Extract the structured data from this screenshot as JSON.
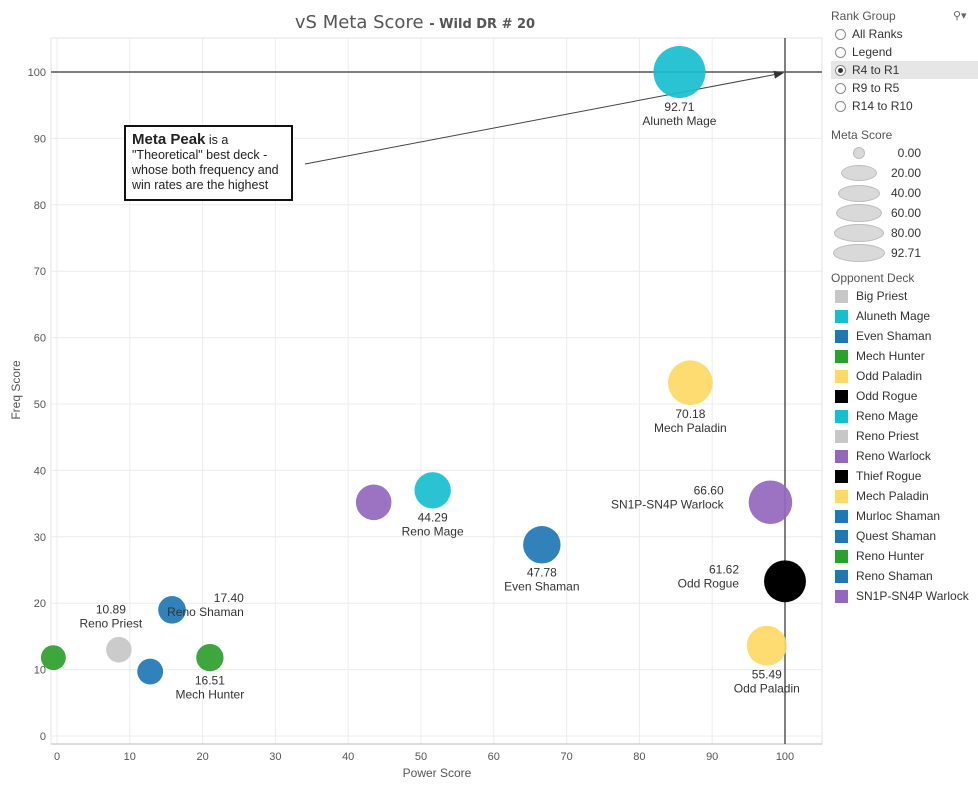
{
  "chart_data": {
    "type": "scatter",
    "title": "vS Meta Score",
    "subtitle": "- Wild DR # 20",
    "xlabel": "Power Score",
    "ylabel": "Freq Score",
    "xlim": [
      0,
      105
    ],
    "ylim": [
      0,
      105
    ],
    "xticks": [
      0,
      10,
      20,
      30,
      40,
      50,
      60,
      70,
      80,
      90,
      100
    ],
    "yticks": [
      0,
      10,
      20,
      30,
      40,
      50,
      60,
      70,
      80,
      90,
      100
    ],
    "grid": true,
    "reference_lines": {
      "x": 100,
      "y": 100
    },
    "points": [
      {
        "deck": "Aluneth Mage",
        "x": 85.5,
        "y": 100,
        "meta": 92.71,
        "color": "#17becf",
        "label": "92.71",
        "name_label": "Aluneth Mage",
        "label_pos": "below"
      },
      {
        "deck": "Mech Paladin",
        "x": 87,
        "y": 53.2,
        "meta": 70.18,
        "color": "#ffd966",
        "label": "70.18",
        "name_label": "Mech Paladin",
        "label_pos": "below"
      },
      {
        "deck": "SN1P-SN4P Warlock",
        "x": 98,
        "y": 35.2,
        "meta": 66.6,
        "color": "#9467bd",
        "label": "66.60",
        "name_label": "SN1P-SN4P Warlock",
        "label_pos": "left"
      },
      {
        "deck": "Odd Rogue",
        "x": 100,
        "y": 23.3,
        "meta": 61.62,
        "color": "#000000",
        "label": "61.62",
        "name_label": "Odd Rogue",
        "label_pos": "left"
      },
      {
        "deck": "Odd Paladin",
        "x": 97.5,
        "y": 13.6,
        "meta": 55.49,
        "color": "#ffd966",
        "label": "55.49",
        "name_label": "Odd Paladin",
        "label_pos": "below"
      },
      {
        "deck": "Even Shaman",
        "x": 66.6,
        "y": 28.8,
        "meta": 47.78,
        "color": "#1f77b4",
        "label": "47.78",
        "name_label": "Even Shaman",
        "label_pos": "below"
      },
      {
        "deck": "Reno Mage",
        "x": 51.6,
        "y": 37,
        "meta": 44.29,
        "color": "#17becf",
        "label": "44.29",
        "name_label": "Reno Mage",
        "label_pos": "below"
      },
      {
        "deck": "Reno Warlock",
        "x": 43.5,
        "y": 35.2,
        "meta": 42.0,
        "color": "#9467bd",
        "label": "",
        "name_label": "",
        "label_pos": "none"
      },
      {
        "deck": "Reno Shaman",
        "x": 15.8,
        "y": 19,
        "meta": 17.4,
        "color": "#1f77b4",
        "label": "17.40",
        "name_label": "Reno Shaman",
        "label_pos": "right"
      },
      {
        "deck": "Reno Priest",
        "x": 8.5,
        "y": 13,
        "meta": 10.89,
        "color": "#c7c7c7",
        "label": "10.89",
        "name_label": "Reno Priest",
        "label_pos": "above-left"
      },
      {
        "deck": "Mech Hunter",
        "x": 21,
        "y": 11.8,
        "meta": 16.51,
        "color": "#2ca02c",
        "label": "16.51",
        "name_label": "Mech Hunter",
        "label_pos": "below"
      },
      {
        "deck": "Murloc Shaman",
        "x": 12.8,
        "y": 9.7,
        "meta": 12.0,
        "color": "#1f77b4",
        "label": "",
        "name_label": "",
        "label_pos": "none"
      },
      {
        "deck": "Reno Hunter",
        "x": -0.5,
        "y": 11.8,
        "meta": 9.0,
        "color": "#2ca02c",
        "label": "",
        "name_label": "",
        "label_pos": "none"
      }
    ]
  },
  "annotation": {
    "bold": "Meta Peak",
    "text": " is a \"Theoretical\" best deck - whose both frequency and win rates are the highest"
  },
  "rank_group": {
    "title": "Rank Group",
    "search_icon": "magnifier-icon",
    "options": [
      {
        "label": "All Ranks",
        "selected": false
      },
      {
        "label": "Legend",
        "selected": false
      },
      {
        "label": "R4 to R1",
        "selected": true
      },
      {
        "label": "R9 to R5",
        "selected": false
      },
      {
        "label": "R14 to R10",
        "selected": false
      }
    ]
  },
  "meta_score_legend": {
    "title": "Meta Score",
    "entries": [
      "0.00",
      "20.00",
      "40.00",
      "60.00",
      "80.00",
      "92.71"
    ]
  },
  "opponent_deck_legend": {
    "title": "Opponent Deck",
    "entries": [
      {
        "label": "Big Priest",
        "color": "#c7c7c7"
      },
      {
        "label": "Aluneth Mage",
        "color": "#17becf"
      },
      {
        "label": "Even Shaman",
        "color": "#1f77b4"
      },
      {
        "label": "Mech Hunter",
        "color": "#2ca02c"
      },
      {
        "label": "Odd Paladin",
        "color": "#ffd966"
      },
      {
        "label": "Odd Rogue",
        "color": "#000000"
      },
      {
        "label": "Reno Mage",
        "color": "#17becf"
      },
      {
        "label": "Reno Priest",
        "color": "#c7c7c7"
      },
      {
        "label": "Reno Warlock",
        "color": "#9467bd"
      },
      {
        "label": "Thief Rogue",
        "color": "#000000"
      },
      {
        "label": "Mech Paladin",
        "color": "#ffd966"
      },
      {
        "label": "Murloc Shaman",
        "color": "#1f77b4"
      },
      {
        "label": "Quest Shaman",
        "color": "#1f77b4"
      },
      {
        "label": "Reno Hunter",
        "color": "#2ca02c"
      },
      {
        "label": "Reno Shaman",
        "color": "#1f77b4"
      },
      {
        "label": "SN1P-SN4P Warlock",
        "color": "#9467bd"
      }
    ]
  }
}
